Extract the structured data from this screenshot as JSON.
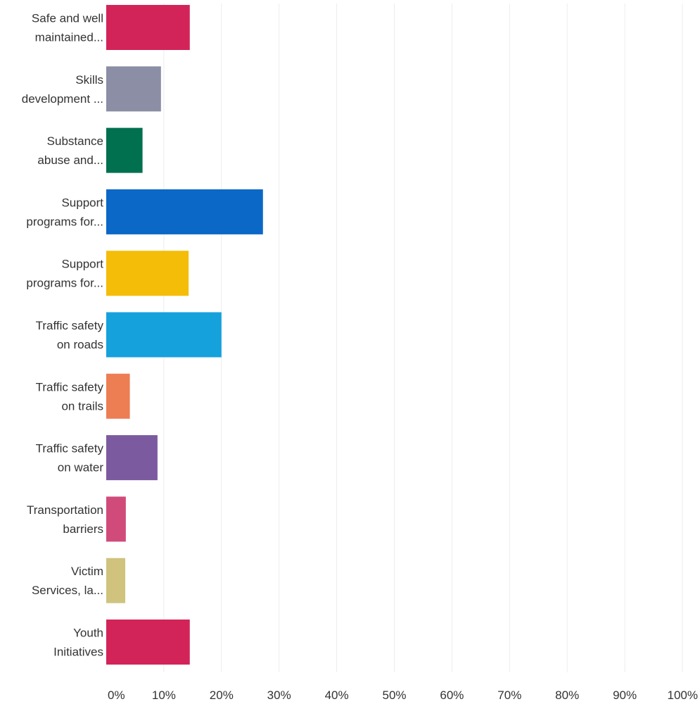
{
  "chart_data": {
    "type": "bar",
    "orientation": "horizontal",
    "title": "",
    "xlabel": "",
    "ylabel": "",
    "xlim": [
      0,
      100
    ],
    "grid": true,
    "legend": "none",
    "ticks": [
      "0%",
      "10%",
      "20%",
      "30%",
      "40%",
      "50%",
      "60%",
      "70%",
      "80%",
      "90%",
      "100%"
    ],
    "categories": [
      [
        "Safe and well",
        "maintained..."
      ],
      [
        "Skills",
        "development ..."
      ],
      [
        "Substance",
        "abuse and..."
      ],
      [
        "Support",
        "programs for..."
      ],
      [
        "Support",
        "programs for..."
      ],
      [
        "Traffic safety",
        "on roads"
      ],
      [
        "Traffic safety",
        "on trails"
      ],
      [
        "Traffic safety",
        "on water"
      ],
      [
        "Transportation",
        "barriers"
      ],
      [
        "Victim",
        "Services, la..."
      ],
      [
        "Youth",
        "Initiatives"
      ]
    ],
    "values": [
      14.5,
      9.5,
      6.3,
      27.2,
      14.3,
      20.0,
      4.1,
      8.9,
      3.4,
      3.3,
      14.5
    ],
    "colors": [
      "#d22458",
      "#8b8ea5",
      "#00704f",
      "#0b68c7",
      "#f4bd07",
      "#15a1dc",
      "#ed7e54",
      "#7c5aa0",
      "#d04b7a",
      "#cfc37e",
      "#d22458"
    ]
  }
}
